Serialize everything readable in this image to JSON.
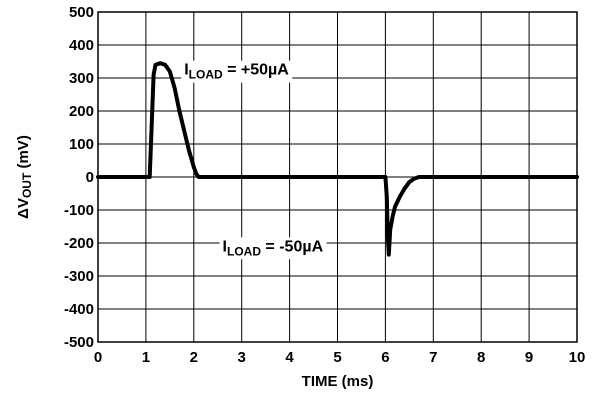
{
  "chart_data": {
    "type": "line",
    "xlabel": "TIME (ms)",
    "ylabel_prefix": "ΔV",
    "ylabel_sub": "OUT",
    "ylabel_suffix": " (mV)",
    "xlim": [
      0,
      10
    ],
    "ylim": [
      -500,
      500
    ],
    "x_ticks": [
      "0",
      "1",
      "2",
      "3",
      "4",
      "5",
      "6",
      "7",
      "8",
      "9",
      "10"
    ],
    "y_ticks": [
      "500",
      "400",
      "300",
      "200",
      "100",
      "0",
      "-100",
      "-200",
      "-300",
      "-400",
      "-500"
    ],
    "grid": true,
    "line_color": "#000000",
    "series": [
      {
        "x": [
          0,
          1.08,
          1.12,
          1.16,
          1.2,
          1.3,
          1.4,
          1.5,
          1.6,
          1.7,
          1.8,
          1.9,
          2.0,
          2.05,
          2.1,
          2.2,
          6.0,
          6.03,
          6.05,
          6.07,
          6.1,
          6.15,
          6.2,
          6.3,
          6.4,
          6.5,
          6.6,
          6.7,
          10.0
        ],
        "y": [
          0,
          0,
          150,
          310,
          340,
          345,
          340,
          320,
          270,
          200,
          140,
          80,
          30,
          10,
          0,
          0,
          0,
          -60,
          -180,
          -235,
          -160,
          -120,
          -90,
          -60,
          -35,
          -15,
          -5,
          0,
          0
        ]
      }
    ],
    "annotations": [
      {
        "prefix": "I",
        "sub": "LOAD",
        "text": " = +50µA",
        "x": 1.8,
        "y": 310
      },
      {
        "prefix": "I",
        "sub": "LOAD",
        "text": " = -50µA",
        "x": 2.6,
        "y": -225
      }
    ]
  }
}
